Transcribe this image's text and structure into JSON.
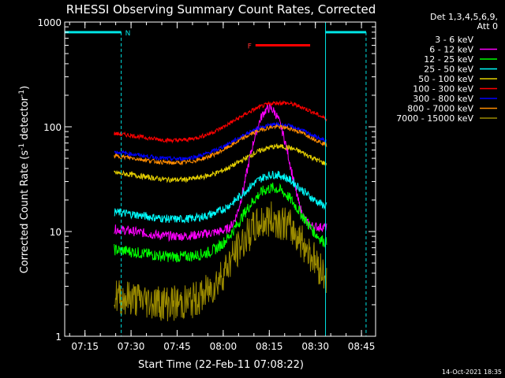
{
  "chart_data": {
    "type": "line",
    "title": "RHESSI Observing Summary Count Rates, Corrected",
    "xlabel": "Start Time (22-Feb-11 07:08:22)",
    "ylabel_main": "Corrected Count Rate (s",
    "ylabel_sup1": "-1",
    "ylabel_mid": " detector",
    "ylabel_sup2": "-1",
    "ylabel_end": ")",
    "x_range_min": [
      8.4,
      109.6
    ],
    "y_range": [
      1,
      1000
    ],
    "y_scale": "log",
    "x_ticks": [
      {
        "t": 15,
        "label": "07:15"
      },
      {
        "t": 30,
        "label": "07:30"
      },
      {
        "t": 45,
        "label": "07:45"
      },
      {
        "t": 60,
        "label": "08:00"
      },
      {
        "t": 75,
        "label": "08:15"
      },
      {
        "t": 90,
        "label": "08:30"
      },
      {
        "t": 105,
        "label": "08:45"
      }
    ],
    "y_ticks": [
      {
        "v": 1,
        "label": "1"
      },
      {
        "v": 10,
        "label": "10"
      },
      {
        "v": 100,
        "label": "100"
      },
      {
        "v": 1000,
        "label": "1000"
      }
    ],
    "legend_header": [
      "Det 1,3,4,5,6,9,",
      "Att 0"
    ],
    "series": [
      {
        "name": "3 - 6 keV",
        "color": "#000000"
      },
      {
        "name": "6 - 12 keV",
        "color": "#ff00ff"
      },
      {
        "name": "12 - 25 keV",
        "color": "#00ff00"
      },
      {
        "name": "25 - 50 keV",
        "color": "#00ffff"
      },
      {
        "name": "50 - 100 keV",
        "color": "#e6d000"
      },
      {
        "name": "100 - 300 keV",
        "color": "#ff0000"
      },
      {
        "name": "300 - 800 keV",
        "color": "#0000ff"
      },
      {
        "name": "800 - 7000 keV",
        "color": "#ff8c00"
      },
      {
        "name": "7000 - 15000 keV",
        "color": "#9a8a00"
      }
    ],
    "night_intervals": [
      {
        "label": "N",
        "start": 8.4,
        "end": 26.8
      },
      {
        "label": "",
        "start": 93.3,
        "end": 106.5
      }
    ],
    "flare_interval": {
      "label": "F",
      "start": 70.5,
      "end": 88.3
    },
    "timestamp": "14-Oct-2021 18:35"
  }
}
